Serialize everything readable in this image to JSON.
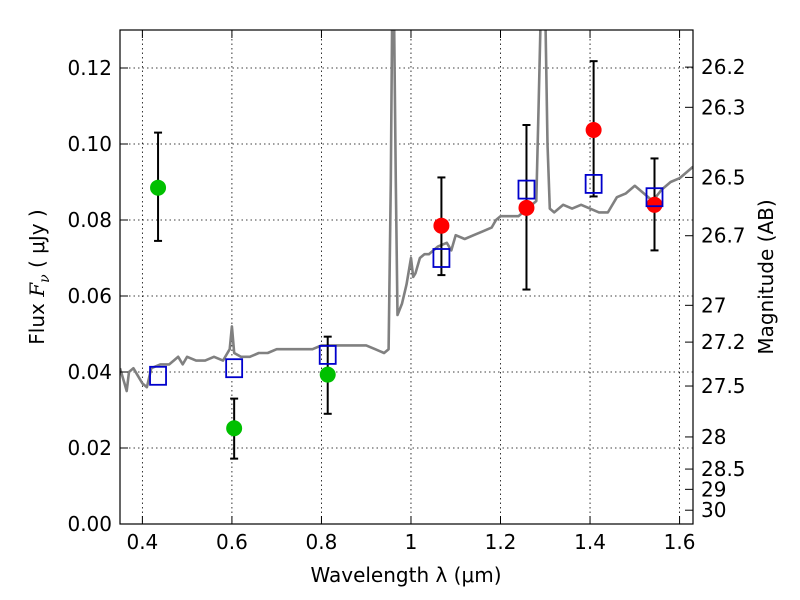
{
  "chart_data": {
    "type": "scatter",
    "title": "",
    "xlabel": "Wavelength  λ (μm)",
    "ylabel_parts": {
      "pre": "Flux  ",
      "var": "F",
      "sub": "ν",
      "post": "  ( μJy )"
    },
    "y2label": "Magnitude (AB)",
    "xlim": [
      0.35,
      1.63
    ],
    "ylim": [
      0.0,
      0.13
    ],
    "grid": true,
    "x_ticks": [
      {
        "value": 0.4,
        "label": "0.4"
      },
      {
        "value": 0.6,
        "label": "0.6"
      },
      {
        "value": 0.8,
        "label": "0.8"
      },
      {
        "value": 1.0,
        "label": "1"
      },
      {
        "value": 1.2,
        "label": "1.2"
      },
      {
        "value": 1.4,
        "label": "1.4"
      },
      {
        "value": 1.6,
        "label": "1.6"
      }
    ],
    "y_ticks": [
      {
        "value": 0.0,
        "label": "0.00"
      },
      {
        "value": 0.02,
        "label": "0.02"
      },
      {
        "value": 0.04,
        "label": "0.04"
      },
      {
        "value": 0.06,
        "label": "0.06"
      },
      {
        "value": 0.08,
        "label": "0.08"
      },
      {
        "value": 0.1,
        "label": "0.10"
      },
      {
        "value": 0.12,
        "label": "0.12"
      }
    ],
    "y2_ticks": [
      {
        "mag": 26.2,
        "label": "26.2"
      },
      {
        "mag": 26.3,
        "label": "26.3"
      },
      {
        "mag": 26.5,
        "label": "26.5"
      },
      {
        "mag": 26.7,
        "label": "26.7"
      },
      {
        "mag": 27.0,
        "label": "27"
      },
      {
        "mag": 27.2,
        "label": "27.2"
      },
      {
        "mag": 27.5,
        "label": "27.5"
      },
      {
        "mag": 28.0,
        "label": "28"
      },
      {
        "mag": 28.5,
        "label": "28.5"
      },
      {
        "mag": 29.0,
        "label": "29"
      },
      {
        "mag": 30.0,
        "label": "30"
      }
    ],
    "spectrum": {
      "color": "#808080",
      "points": [
        [
          0.35,
          0.041
        ],
        [
          0.36,
          0.037
        ],
        [
          0.365,
          0.035
        ],
        [
          0.37,
          0.04
        ],
        [
          0.38,
          0.041
        ],
        [
          0.39,
          0.039
        ],
        [
          0.4,
          0.037
        ],
        [
          0.41,
          0.036
        ],
        [
          0.42,
          0.041
        ],
        [
          0.44,
          0.042
        ],
        [
          0.46,
          0.042
        ],
        [
          0.47,
          0.043
        ],
        [
          0.48,
          0.044
        ],
        [
          0.49,
          0.042
        ],
        [
          0.5,
          0.044
        ],
        [
          0.52,
          0.043
        ],
        [
          0.54,
          0.043
        ],
        [
          0.56,
          0.044
        ],
        [
          0.58,
          0.043
        ],
        [
          0.595,
          0.046
        ],
        [
          0.6,
          0.052
        ],
        [
          0.605,
          0.045
        ],
        [
          0.62,
          0.044
        ],
        [
          0.64,
          0.044
        ],
        [
          0.66,
          0.045
        ],
        [
          0.68,
          0.045
        ],
        [
          0.7,
          0.046
        ],
        [
          0.72,
          0.046
        ],
        [
          0.74,
          0.046
        ],
        [
          0.76,
          0.046
        ],
        [
          0.78,
          0.046
        ],
        [
          0.8,
          0.047
        ],
        [
          0.82,
          0.047
        ],
        [
          0.84,
          0.047
        ],
        [
          0.86,
          0.047
        ],
        [
          0.88,
          0.047
        ],
        [
          0.9,
          0.047
        ],
        [
          0.92,
          0.046
        ],
        [
          0.94,
          0.045
        ],
        [
          0.95,
          0.046
        ],
        [
          0.955,
          0.09
        ],
        [
          0.958,
          0.135
        ],
        [
          0.962,
          0.135
        ],
        [
          0.966,
          0.09
        ],
        [
          0.97,
          0.055
        ],
        [
          0.98,
          0.058
        ],
        [
          0.99,
          0.063
        ],
        [
          1.0,
          0.07
        ],
        [
          1.005,
          0.065
        ],
        [
          1.01,
          0.066
        ],
        [
          1.02,
          0.07
        ],
        [
          1.03,
          0.071
        ],
        [
          1.04,
          0.071
        ],
        [
          1.06,
          0.073
        ],
        [
          1.08,
          0.074
        ],
        [
          1.09,
          0.072
        ],
        [
          1.1,
          0.076
        ],
        [
          1.12,
          0.075
        ],
        [
          1.14,
          0.076
        ],
        [
          1.16,
          0.077
        ],
        [
          1.18,
          0.078
        ],
        [
          1.19,
          0.08
        ],
        [
          1.2,
          0.081
        ],
        [
          1.22,
          0.081
        ],
        [
          1.24,
          0.081
        ],
        [
          1.26,
          0.083
        ],
        [
          1.28,
          0.085
        ],
        [
          1.285,
          0.11
        ],
        [
          1.29,
          0.135
        ],
        [
          1.3,
          0.135
        ],
        [
          1.305,
          0.1
        ],
        [
          1.31,
          0.083
        ],
        [
          1.32,
          0.082
        ],
        [
          1.34,
          0.084
        ],
        [
          1.36,
          0.083
        ],
        [
          1.38,
          0.084
        ],
        [
          1.4,
          0.083
        ],
        [
          1.42,
          0.082
        ],
        [
          1.44,
          0.082
        ],
        [
          1.46,
          0.086
        ],
        [
          1.48,
          0.087
        ],
        [
          1.5,
          0.089
        ],
        [
          1.52,
          0.087
        ],
        [
          1.54,
          0.085
        ],
        [
          1.56,
          0.088
        ],
        [
          1.58,
          0.09
        ],
        [
          1.6,
          0.091
        ],
        [
          1.62,
          0.093
        ],
        [
          1.63,
          0.094
        ]
      ]
    },
    "series": [
      {
        "marker": "circle",
        "color": "#00c000",
        "points": [
          {
            "x": 0.435,
            "y": 0.0885,
            "yerr_low": 0.0745,
            "yerr_high": 0.103
          },
          {
            "x": 0.605,
            "y": 0.0252,
            "yerr_low": 0.0172,
            "yerr_high": 0.033
          },
          {
            "x": 0.814,
            "y": 0.0393,
            "yerr_low": 0.029,
            "yerr_high": 0.0493
          }
        ]
      },
      {
        "marker": "circle",
        "color": "#ff0000",
        "points": [
          {
            "x": 1.068,
            "y": 0.0785,
            "yerr_low": 0.0655,
            "yerr_high": 0.0912
          },
          {
            "x": 1.258,
            "y": 0.0832,
            "yerr_low": 0.0617,
            "yerr_high": 0.105
          },
          {
            "x": 1.408,
            "y": 0.1037,
            "yerr_low": 0.0862,
            "yerr_high": 0.1218
          },
          {
            "x": 1.544,
            "y": 0.084,
            "yerr_low": 0.072,
            "yerr_high": 0.0962
          }
        ]
      },
      {
        "marker": "square-open",
        "color": "#0000cc",
        "points": [
          {
            "x": 0.435,
            "y": 0.039
          },
          {
            "x": 0.605,
            "y": 0.041
          },
          {
            "x": 0.814,
            "y": 0.0445
          },
          {
            "x": 1.068,
            "y": 0.07
          },
          {
            "x": 1.258,
            "y": 0.088
          },
          {
            "x": 1.408,
            "y": 0.0895
          },
          {
            "x": 1.544,
            "y": 0.086
          }
        ]
      }
    ]
  }
}
